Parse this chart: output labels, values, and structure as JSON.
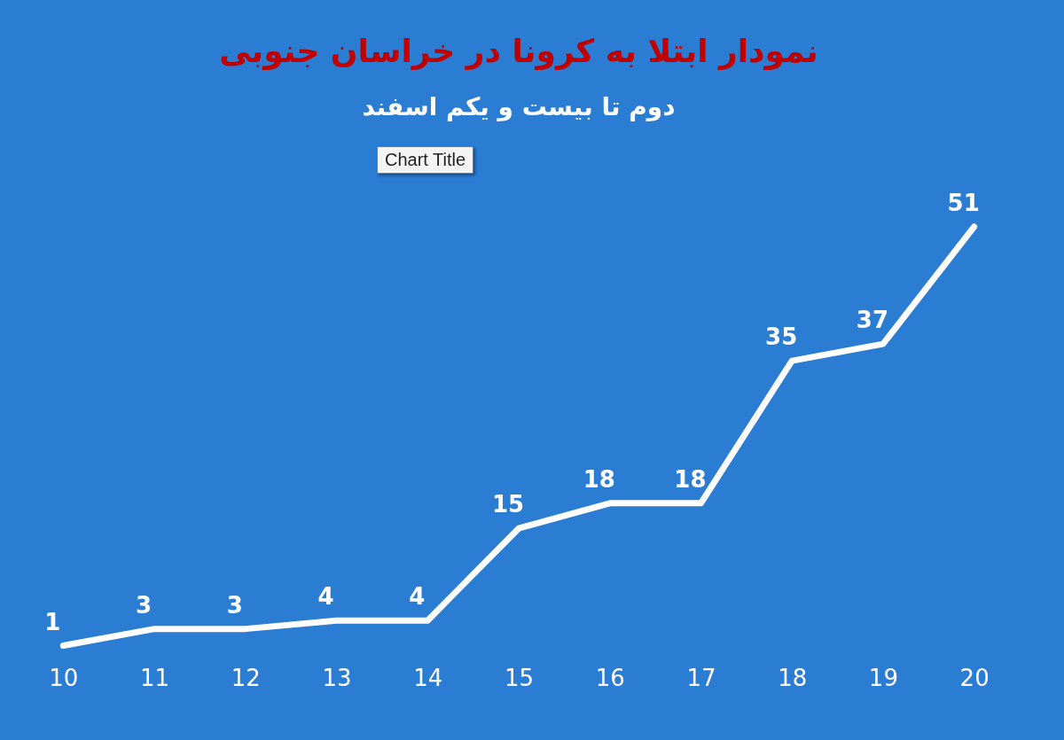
{
  "chart_data": {
    "type": "line",
    "title": "نمودار ابتلا به کرونا در خراسان جنوبی",
    "subtitle": "دوم تا بیست و یکم اسفند",
    "categories": [
      "10",
      "11",
      "12",
      "13",
      "14",
      "15",
      "16",
      "17",
      "18",
      "19",
      "20"
    ],
    "values": [
      1,
      3,
      3,
      4,
      4,
      15,
      18,
      18,
      35,
      37,
      51
    ],
    "color": "#ffffff",
    "data_labels": true,
    "annotations": [
      "Chart Title"
    ]
  }
}
